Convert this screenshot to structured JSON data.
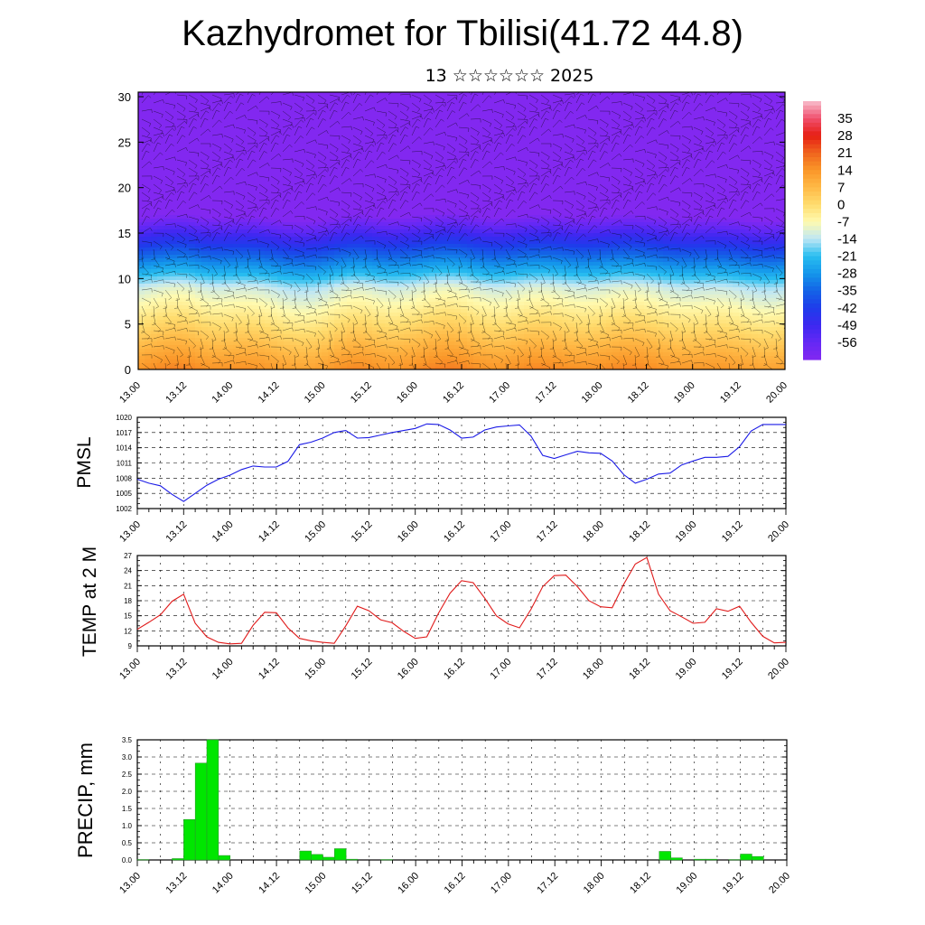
{
  "header": {
    "title": "Kazhydromet for Tbilisi(41.72 44.8)",
    "subtitle": "13 ☆☆☆☆☆☆ 2025"
  },
  "time_labels": [
    "13.00",
    "13.12",
    "14.00",
    "14.12",
    "15.00",
    "15.12",
    "16.00",
    "16.12",
    "17.00",
    "17.12",
    "18.00",
    "18.12",
    "19.00",
    "19.12",
    "20.00"
  ],
  "colors": {
    "pmsl_line": "#1a1ae6",
    "temp_line": "#e01a1a",
    "precip_bar": "#00e600"
  },
  "chart_data": [
    {
      "type": "heatmap",
      "panel": "temperature-wind cross-section",
      "title": "",
      "ylabel": "",
      "ylim": [
        0,
        30.5
      ],
      "xlim": [
        0,
        14
      ],
      "y_ticks": [
        0,
        5,
        10,
        15,
        20,
        25,
        30
      ],
      "colorbar_labels": [
        "35",
        "28",
        "21",
        "14",
        "7",
        "0",
        "-7",
        "-14",
        "-21",
        "-28",
        "-35",
        "-42",
        "-49",
        "-56"
      ],
      "colorbar_range": [
        -63,
        42
      ],
      "wind_barbs": true
    },
    {
      "type": "line",
      "panel": "pmsl",
      "ylabel": "PMSL",
      "ylim": [
        1002,
        1020
      ],
      "y_ticks": [
        1002,
        1005,
        1008,
        1011,
        1014,
        1017,
        1020
      ],
      "x": [
        0,
        0.25,
        0.5,
        0.75,
        1,
        1.25,
        1.5,
        1.75,
        2,
        2.25,
        2.5,
        2.75,
        3,
        3.25,
        3.5,
        3.75,
        4,
        4.25,
        4.5,
        4.75,
        5,
        5.25,
        5.5,
        5.75,
        6,
        6.25,
        6.5,
        6.75,
        7,
        7.25,
        7.5,
        7.75,
        8,
        8.25,
        8.5,
        8.75,
        9,
        9.25,
        9.5,
        9.75,
        10,
        10.25,
        10.5,
        10.75,
        11,
        11.25,
        11.5,
        11.75,
        12,
        12.25,
        12.5,
        12.75,
        13,
        13.25,
        13.5,
        13.75,
        14
      ],
      "values": [
        1007.8,
        1007.0,
        1006.5,
        1004.8,
        1003.4,
        1005.0,
        1006.6,
        1007.8,
        1008.6,
        1009.7,
        1010.4,
        1010.2,
        1010.2,
        1011.3,
        1014.6,
        1015.1,
        1015.9,
        1017.0,
        1017.4,
        1015.9,
        1016.0,
        1016.5,
        1017.0,
        1017.4,
        1017.8,
        1018.7,
        1018.6,
        1017.5,
        1015.9,
        1016.1,
        1017.5,
        1018.1,
        1018.3,
        1018.5,
        1016.3,
        1012.5,
        1011.9,
        1012.6,
        1013.3,
        1013.0,
        1012.9,
        1011.4,
        1008.7,
        1007.0,
        1007.8,
        1008.8,
        1009.0,
        1010.6,
        1011.4,
        1012.1,
        1012.1,
        1012.3,
        1014.2,
        1017.3,
        1018.6,
        1018.6,
        1018.6
      ]
    },
    {
      "type": "line",
      "panel": "temperature",
      "ylabel": "TEMP at 2 M",
      "ylim": [
        9,
        27
      ],
      "y_ticks": [
        9,
        12,
        15,
        18,
        21,
        24,
        27
      ],
      "x": [
        0,
        0.25,
        0.5,
        0.75,
        1,
        1.25,
        1.5,
        1.75,
        2,
        2.25,
        2.5,
        2.75,
        3,
        3.25,
        3.5,
        3.75,
        4,
        4.25,
        4.5,
        4.75,
        5,
        5.25,
        5.5,
        5.75,
        6,
        6.25,
        6.5,
        6.75,
        7,
        7.25,
        7.5,
        7.75,
        8,
        8.25,
        8.5,
        8.75,
        9,
        9.25,
        9.5,
        9.75,
        10,
        10.25,
        10.5,
        10.75,
        11,
        11.25,
        11.5,
        11.75,
        12,
        12.25,
        12.5,
        12.75,
        13,
        13.25,
        13.5,
        13.75,
        14
      ],
      "values": [
        12.3,
        13.7,
        15.2,
        17.9,
        19.3,
        13.5,
        10.8,
        9.7,
        9.4,
        9.5,
        13.1,
        15.7,
        15.6,
        12.6,
        10.5,
        10.0,
        9.7,
        9.5,
        13.0,
        16.9,
        16.0,
        14.2,
        13.6,
        11.9,
        10.5,
        10.8,
        15.5,
        19.5,
        22.0,
        21.6,
        18.5,
        15.0,
        13.4,
        12.6,
        16.3,
        20.8,
        23.0,
        23.1,
        20.8,
        18.0,
        16.8,
        16.6,
        21.3,
        25.3,
        26.6,
        19.3,
        16.0,
        14.8,
        13.5,
        13.7,
        16.4,
        15.9,
        16.9,
        13.7,
        10.9,
        9.6,
        9.7
      ]
    },
    {
      "type": "bar",
      "panel": "precipitation",
      "ylabel": "PRECIP, mm",
      "ylim": [
        0,
        3.5
      ],
      "y_ticks": [
        "0.0",
        "0.5",
        "1.0",
        "1.5",
        "2.0",
        "2.5",
        "3.0",
        "3.5"
      ],
      "bin_width": 0.25,
      "bin_start": [
        0,
        0.75,
        1,
        1.25,
        1.5,
        1.75,
        3.5,
        3.75,
        4,
        4.25,
        4.5,
        5.25,
        11.25,
        11.5,
        12,
        12.25,
        12.75,
        13,
        13.25
      ],
      "values": [
        0.01,
        0.04,
        1.18,
        2.82,
        3.5,
        0.13,
        0.26,
        0.16,
        0.08,
        0.33,
        0.02,
        0.01,
        0.25,
        0.06,
        0.02,
        0.02,
        0.01,
        0.17,
        0.1
      ]
    }
  ]
}
